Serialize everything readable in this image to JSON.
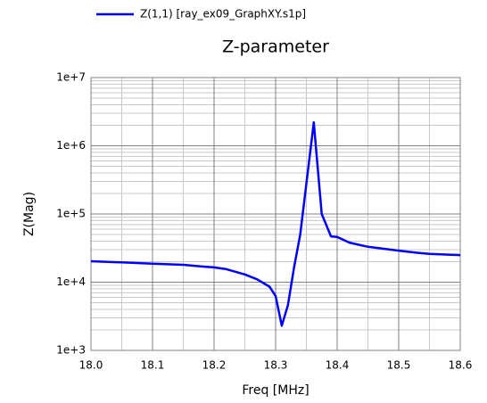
{
  "chart_data": {
    "type": "line",
    "title": "Z-parameter",
    "x_label": "Freq [MHz]",
    "y_label": "Z(Mag)",
    "y_scale": "log",
    "grid": true,
    "xlim": [
      18.0,
      18.6
    ],
    "xticks": [
      {
        "value": 18.0,
        "label": "18.0"
      },
      18.1,
      18.2,
      18.3,
      18.4,
      18.5,
      18.6
    ],
    "ylim": [
      1000,
      10000000
    ],
    "yticks": [
      {
        "value": 1000,
        "label": "1e+3"
      },
      {
        "value": 10000,
        "label": "1e+4"
      },
      {
        "value": 100000,
        "label": "1e+5"
      },
      {
        "value": 1000000,
        "label": "1e+6"
      },
      {
        "value": 10000000,
        "label": "1e+7"
      }
    ],
    "x": [
      18.0,
      18.05,
      18.1,
      18.15,
      18.18,
      18.2,
      18.22,
      18.25,
      18.27,
      18.29,
      18.3,
      18.31,
      18.32,
      18.33,
      18.34,
      18.362,
      18.375,
      18.39,
      18.4,
      18.42,
      18.45,
      18.5,
      18.53,
      18.55,
      18.6
    ],
    "series": [
      {
        "name": "Z(1,1) [ray_ex09_GraphXY.s1p]",
        "color": "#0000ff",
        "values": [
          20300,
          19500,
          18700,
          18000,
          17000,
          16500,
          15500,
          13000,
          11000,
          8600,
          6300,
          2300,
          4600,
          16500,
          50000,
          2200000,
          100000,
          47000,
          46000,
          38000,
          33000,
          29000,
          27000,
          26000,
          25000
        ]
      }
    ]
  }
}
